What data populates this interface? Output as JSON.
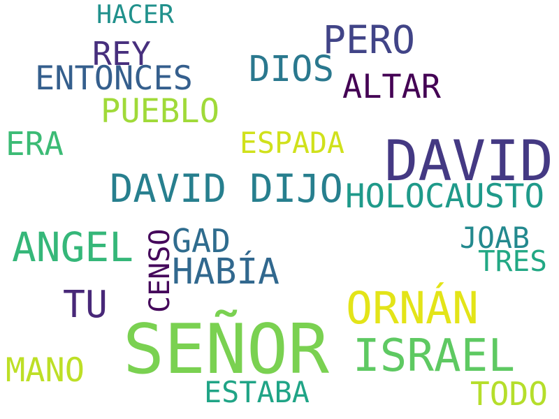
{
  "words": [
    {
      "key": "senor",
      "text": "SEÑOR",
      "color": "#7ad151"
    },
    {
      "key": "david",
      "text": "DAVID",
      "color": "#443983"
    },
    {
      "key": "israel",
      "text": "ISRAEL",
      "color": "#5ec962"
    },
    {
      "key": "ornan",
      "text": "ORNÁN",
      "color": "#e3e418"
    },
    {
      "key": "david-dijo",
      "text": "DAVID DIJO",
      "color": "#277f8e"
    },
    {
      "key": "angel",
      "text": "ANGEL",
      "color": "#35b779"
    },
    {
      "key": "pero",
      "text": "PERO",
      "color": "#414487"
    },
    {
      "key": "holocausto",
      "text": "HOLOCAUSTO",
      "color": "#1f9a8a"
    },
    {
      "key": "habia",
      "text": "HABÍA",
      "color": "#31688e"
    },
    {
      "key": "tu",
      "text": "TU",
      "color": "#482878"
    },
    {
      "key": "dios",
      "text": "DIOS",
      "color": "#2a788e"
    },
    {
      "key": "entonces",
      "text": "ENTONCES",
      "color": "#355f8d"
    },
    {
      "key": "pueblo",
      "text": "PUEBLO",
      "color": "#a0da39"
    },
    {
      "key": "rey",
      "text": "REY",
      "color": "#472f7d"
    },
    {
      "key": "altar",
      "text": "ALTAR",
      "color": "#440154"
    },
    {
      "key": "era",
      "text": "ERA",
      "color": "#3cbb75"
    },
    {
      "key": "espada",
      "text": "ESPADA",
      "color": "#d0e11c"
    },
    {
      "key": "gad",
      "text": "GAD",
      "color": "#2f6c8e"
    },
    {
      "key": "censo",
      "text": "CENSO",
      "color": "#45085b"
    },
    {
      "key": "joab",
      "text": "JOAB",
      "color": "#23898e"
    },
    {
      "key": "tres",
      "text": "TRES",
      "color": "#22a884"
    },
    {
      "key": "mano",
      "text": "MANO",
      "color": "#bddf26"
    },
    {
      "key": "estaba",
      "text": "ESTABA",
      "color": "#20a486"
    },
    {
      "key": "todo",
      "text": "TODO",
      "color": "#b5de2b"
    },
    {
      "key": "hacer",
      "text": "HACER",
      "color": "#21918c"
    }
  ]
}
